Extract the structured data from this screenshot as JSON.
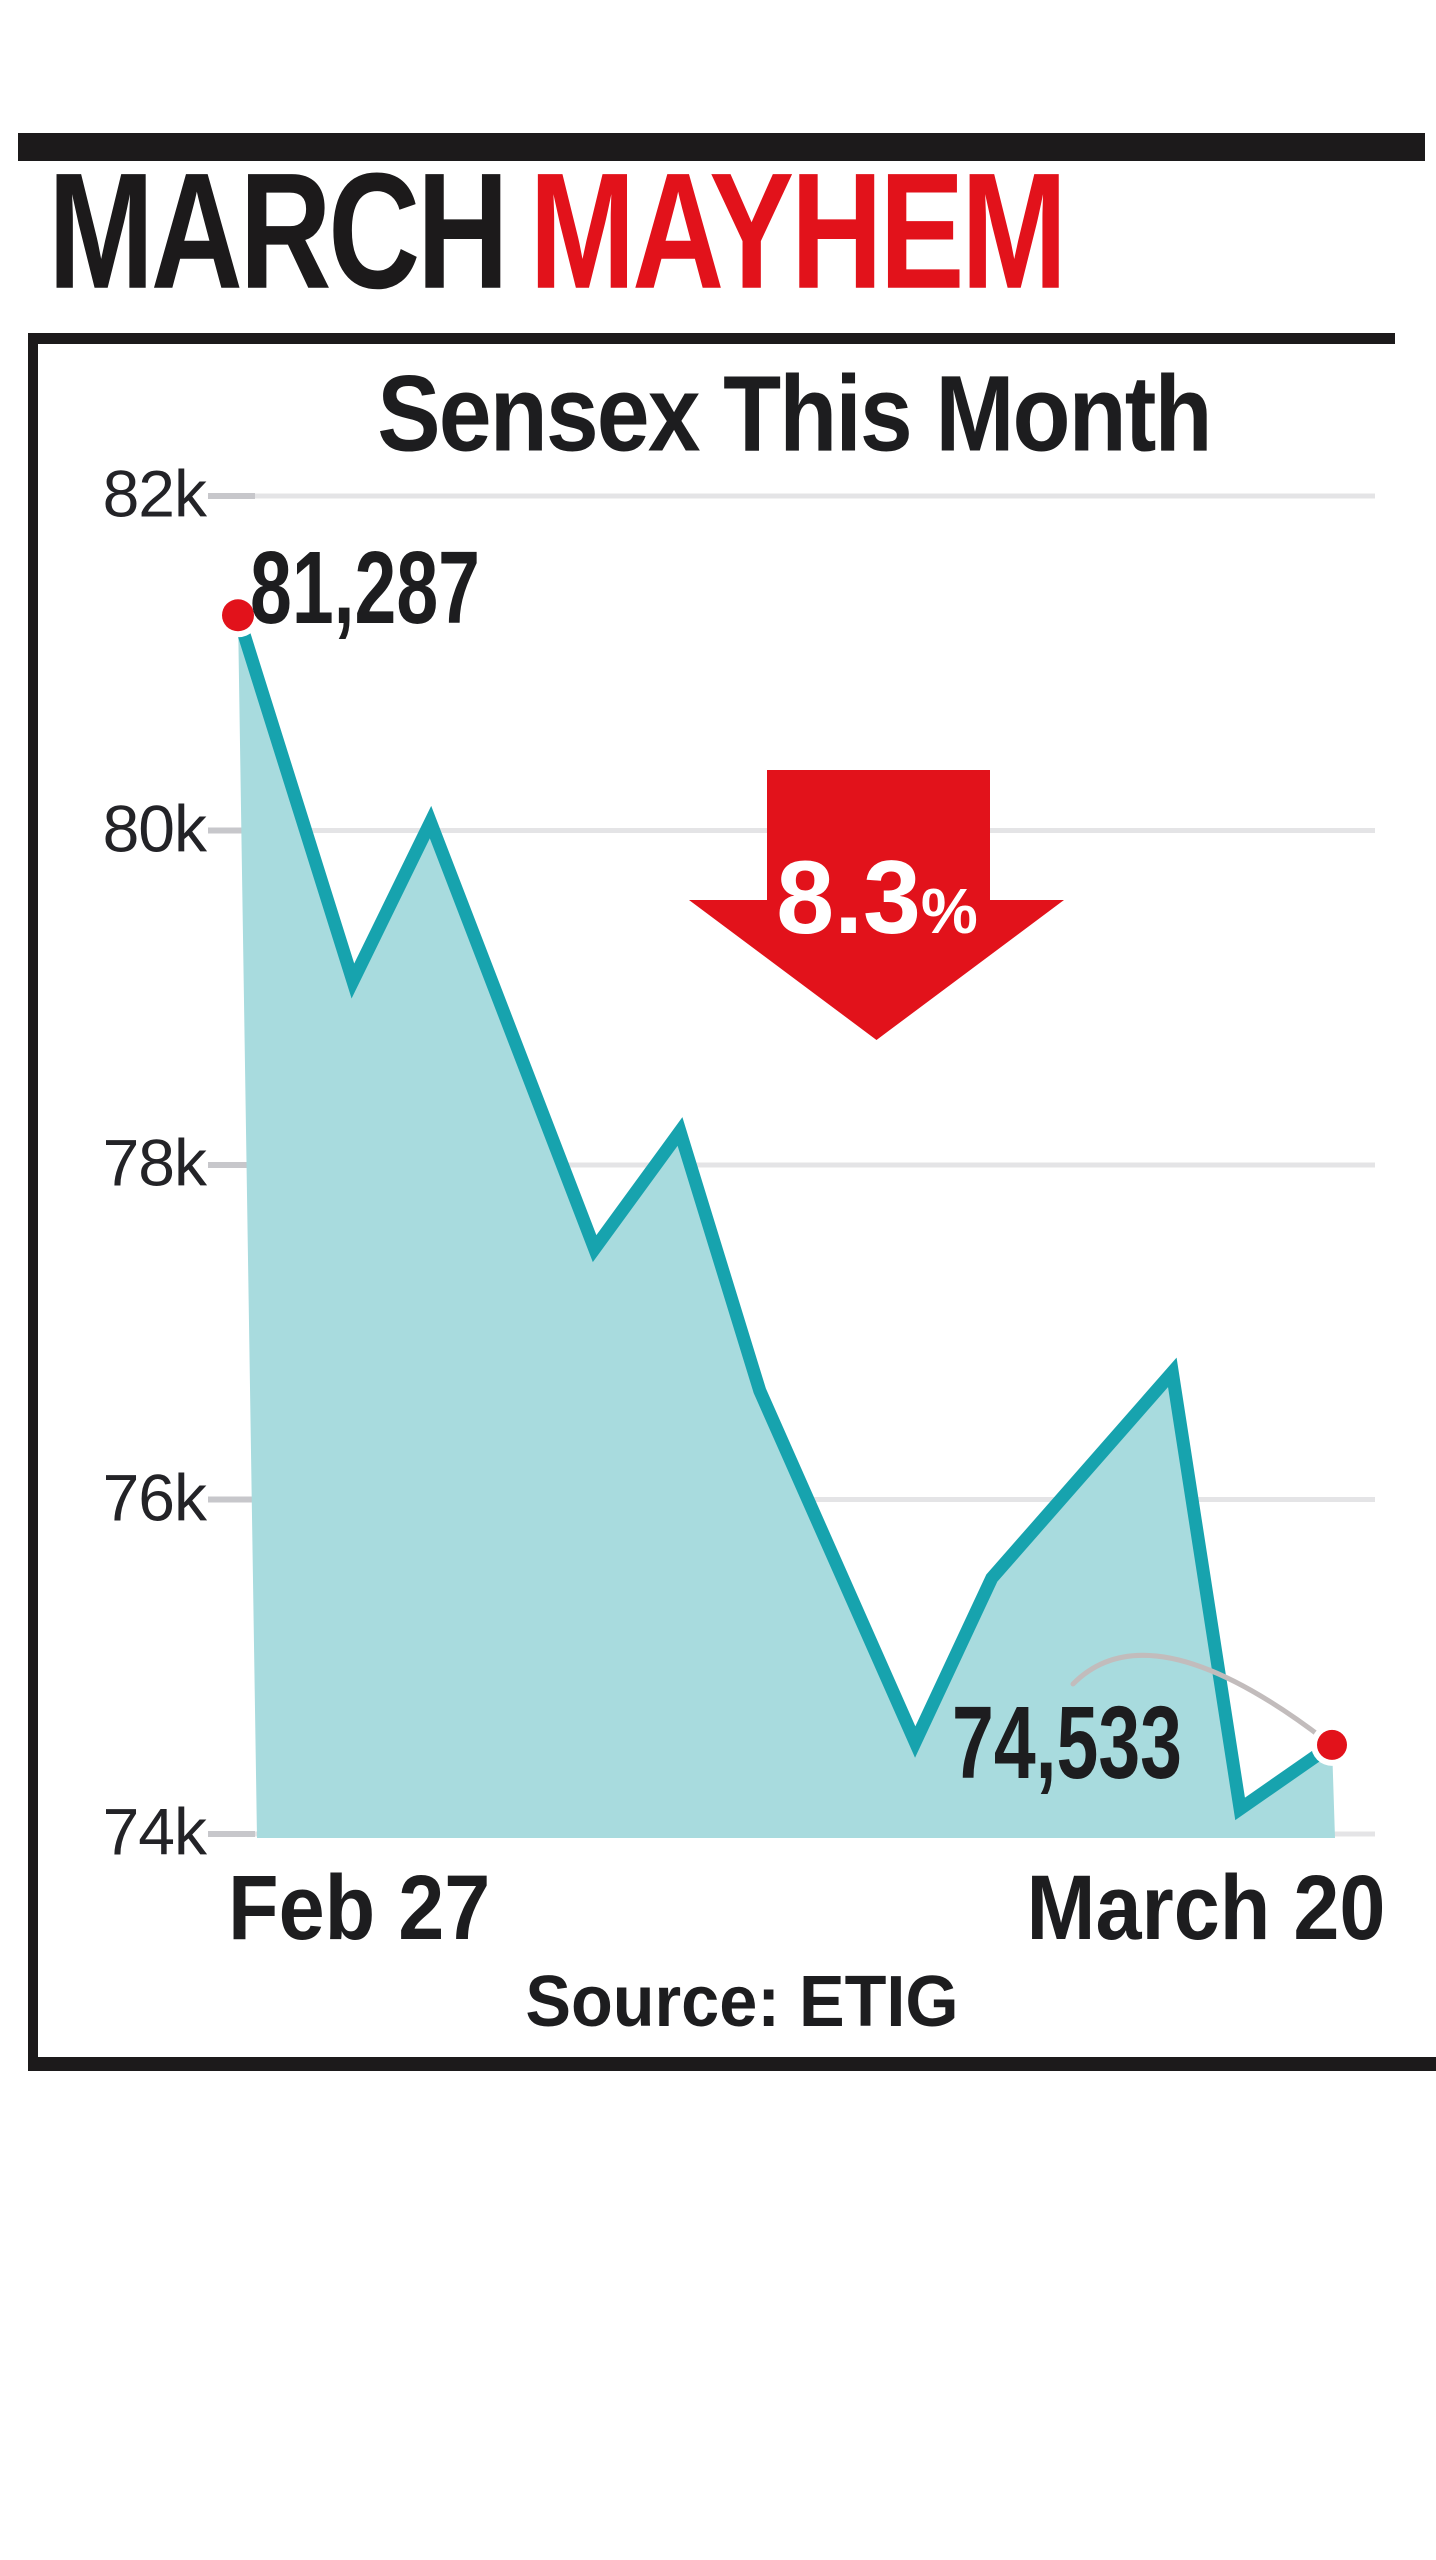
{
  "masthead": {
    "bar_color": "#1c1a1b",
    "title_black": "MARCH",
    "title_red": "MAYHEM"
  },
  "colors": {
    "accent_red": "#e2121b",
    "line_teal": "#17a3ae",
    "fill_teal": "#a8dbde",
    "grid_gray": "#e4e4e6",
    "tick_gray": "#c7c7cb",
    "swoosh_gray": "#c2bcbc",
    "text_dark": "#1d1d1f"
  },
  "chart_data": {
    "type": "area",
    "title": "Sensex This Month",
    "series_name": "Sensex",
    "grid": true,
    "legend_position": "none",
    "y_axis": {
      "min": 74000,
      "max": 82000,
      "ticks": [
        {
          "label": "82k",
          "value": 82000
        },
        {
          "label": "80k",
          "value": 80000
        },
        {
          "label": "78k",
          "value": 78000
        },
        {
          "label": "76k",
          "value": 76000
        },
        {
          "label": "74k",
          "value": 74000
        }
      ]
    },
    "x_range_labels": [
      "Feb 27",
      "March 20"
    ],
    "points": [
      {
        "t": 0.0,
        "value": 81287
      },
      {
        "t": 0.105,
        "value": 79100
      },
      {
        "t": 0.176,
        "value": 80050
      },
      {
        "t": 0.326,
        "value": 77500
      },
      {
        "t": 0.404,
        "value": 78200
      },
      {
        "t": 0.477,
        "value": 76650
      },
      {
        "t": 0.619,
        "value": 74550
      },
      {
        "t": 0.689,
        "value": 75530
      },
      {
        "t": 0.854,
        "value": 76760
      },
      {
        "t": 0.916,
        "value": 74150
      },
      {
        "t": 1.0,
        "value": 74533
      }
    ],
    "start_point": {
      "label": "81,287",
      "value": 81287,
      "date": "Feb 27"
    },
    "end_point": {
      "label": "74,533",
      "value": 74533,
      "date": "March 20"
    },
    "change": {
      "number": "8.3",
      "suffix": "%",
      "direction": "down"
    },
    "source": "Source: ETIG"
  }
}
